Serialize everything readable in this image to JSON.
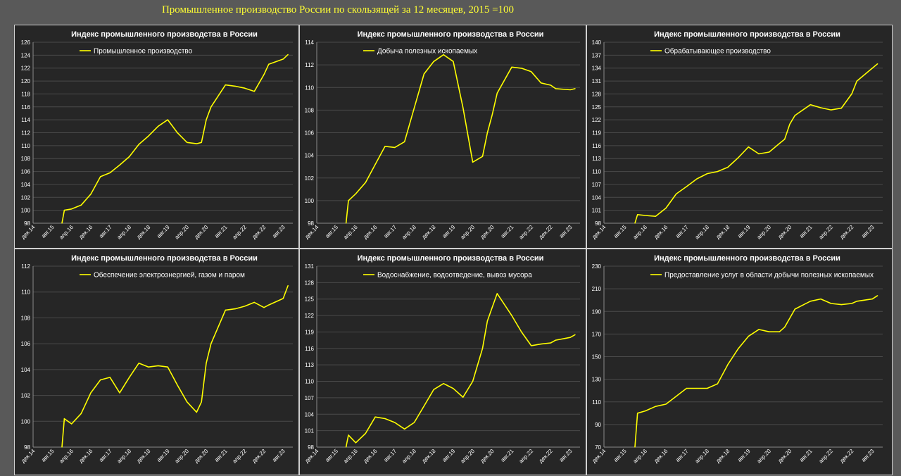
{
  "page_title": "Промышленное производство России по скользящей за 12 месяцев, 2015 =100",
  "colors": {
    "background": "#595959",
    "panel": "#262626",
    "line": "#ffff00",
    "title": "#ffff33"
  },
  "chart_data": [
    {
      "type": "line",
      "title": "Индекс промышленного производства в России",
      "legend": "Промышленное производство",
      "legend_position": "top-left",
      "grid": true,
      "ylim": [
        98,
        126
      ],
      "yticks": [
        98,
        100,
        102,
        104,
        106,
        108,
        110,
        112,
        114,
        116,
        118,
        120,
        122,
        124,
        126
      ],
      "x_labels": [
        "дек.14",
        "авг.15",
        "апр.16",
        "дек.16",
        "авг.17",
        "апр.18",
        "дек.18",
        "авг.19",
        "апр.20",
        "дек.20",
        "авг.21",
        "апр.22",
        "дек.22",
        "авг.23"
      ],
      "series": [
        {
          "x": [
            "дек.15",
            "янв.16",
            "апр.16",
            "авг.16",
            "дек.16",
            "апр.17",
            "авг.17",
            "дек.17",
            "апр.18",
            "авг.18",
            "дек.18",
            "апр.19",
            "авг.19",
            "дек.19",
            "апр.20",
            "авг.20",
            "окт.20",
            "дек.20",
            "фев.21",
            "авг.21",
            "дек.21",
            "апр.22",
            "авг.22",
            "дек.22",
            "фев.23",
            "авг.23",
            "окт.23"
          ],
          "values": [
            98,
            100,
            100.2,
            100.8,
            102.5,
            105.2,
            105.8,
            107,
            108.3,
            110.2,
            111.5,
            113,
            114,
            112,
            110.5,
            110.3,
            110.5,
            114,
            116,
            119.4,
            119.2,
            118.9,
            118.4,
            121,
            122.6,
            123.4,
            124.1
          ]
        }
      ]
    },
    {
      "type": "line",
      "title": "Индекс промышленного производства в России",
      "legend": "Добыча полезных ископаемых",
      "legend_position": "top-left",
      "grid": true,
      "ylim": [
        98,
        114
      ],
      "yticks": [
        98,
        100,
        102,
        104,
        106,
        108,
        110,
        112,
        114
      ],
      "x_labels": [
        "дек.14",
        "авг.15",
        "апр.16",
        "дек.16",
        "авг.17",
        "апр.18",
        "дек.18",
        "авг.19",
        "апр.20",
        "дек.20",
        "авг.21",
        "апр.22",
        "дек.22",
        "авг.23"
      ],
      "series": [
        {
          "x": [
            "дек.15",
            "янв.16",
            "апр.16",
            "авг.16",
            "дек.16",
            "апр.17",
            "авг.17",
            "дек.17",
            "апр.18",
            "авг.18",
            "дек.18",
            "апр.19",
            "авг.19",
            "дек.19",
            "апр.20",
            "авг.20",
            "окт.20",
            "дек.20",
            "фев.21",
            "авг.21",
            "дек.21",
            "апр.22",
            "авг.22",
            "дек.22",
            "фев.23",
            "авг.23",
            "окт.23"
          ],
          "values": [
            98,
            100,
            100.6,
            101.6,
            103.2,
            104.8,
            104.7,
            105.2,
            108.2,
            111.2,
            112.3,
            112.9,
            112.3,
            108.2,
            103.4,
            103.9,
            106,
            107.6,
            109.5,
            111.8,
            111.7,
            111.4,
            110.4,
            110.2,
            109.9,
            109.8,
            109.9
          ]
        }
      ]
    },
    {
      "type": "line",
      "title": "Индекс промышленного производства в России",
      "legend": "Обрабатывающее производство",
      "legend_position": "top-left",
      "grid": true,
      "ylim": [
        98,
        140
      ],
      "yticks": [
        98,
        101,
        104,
        107,
        110,
        113,
        116,
        119,
        122,
        125,
        128,
        131,
        134,
        137,
        140
      ],
      "x_labels": [
        "дек.14",
        "авг.15",
        "апр.16",
        "дек.16",
        "авг.17",
        "апр.18",
        "дек.18",
        "авг.19",
        "апр.20",
        "дек.20",
        "авг.21",
        "апр.22",
        "дек.22",
        "авг.23"
      ],
      "series": [
        {
          "x": [
            "дек.15",
            "янв.16",
            "апр.16",
            "авг.16",
            "дек.16",
            "апр.17",
            "авг.17",
            "дек.17",
            "апр.18",
            "авг.18",
            "дек.18",
            "апр.19",
            "авг.19",
            "дек.19",
            "апр.20",
            "авг.20",
            "окт.20",
            "дек.20",
            "фев.21",
            "авг.21",
            "дек.21",
            "апр.22",
            "авг.22",
            "дек.22",
            "фев.23",
            "авг.23",
            "окт.23"
          ],
          "values": [
            98,
            100,
            99.8,
            99.6,
            101.5,
            104.8,
            106.5,
            108.3,
            109.5,
            110,
            111,
            113.2,
            115.7,
            114.1,
            114.5,
            116.5,
            117.5,
            121,
            123,
            125.5,
            124.8,
            124.3,
            124.7,
            128,
            131,
            134,
            135
          ]
        }
      ]
    },
    {
      "type": "line",
      "title": "Индекс промышленного производства в России",
      "legend": "Обеспечение электроэнергией, газом и паром",
      "legend_position": "top-left",
      "grid": true,
      "ylim": [
        98,
        112
      ],
      "yticks": [
        98,
        100,
        102,
        104,
        106,
        108,
        110,
        112
      ],
      "x_labels": [
        "дек.14",
        "авг.15",
        "апр.16",
        "дек.16",
        "авг.17",
        "апр.18",
        "дек.18",
        "авг.19",
        "апр.20",
        "дек.20",
        "авг.21",
        "апр.22",
        "дек.22",
        "авг.23"
      ],
      "series": [
        {
          "x": [
            "дек.15",
            "янв.16",
            "апр.16",
            "авг.16",
            "дек.16",
            "апр.17",
            "авг.17",
            "дек.17",
            "апр.18",
            "авг.18",
            "дек.18",
            "апр.19",
            "авг.19",
            "дек.19",
            "апр.20",
            "авг.20",
            "окт.20",
            "дек.20",
            "фев.21",
            "авг.21",
            "дек.21",
            "апр.22",
            "авг.22",
            "дек.22",
            "фев.23",
            "авг.23",
            "окт.23"
          ],
          "values": [
            98,
            100.2,
            99.8,
            100.6,
            102.2,
            103.2,
            103.4,
            102.2,
            103.4,
            104.5,
            104.2,
            104.3,
            104.2,
            102.8,
            101.5,
            100.7,
            101.5,
            104.5,
            106,
            108.6,
            108.7,
            108.9,
            109.2,
            108.8,
            109,
            109.5,
            110.5
          ]
        }
      ]
    },
    {
      "type": "line",
      "title": "Индекс промышленного производства в России",
      "legend": "Водоснабжение, водоотведение, вывоз мусора",
      "legend_position": "top-left",
      "grid": true,
      "ylim": [
        98,
        131
      ],
      "yticks": [
        98,
        101,
        104,
        107,
        110,
        113,
        116,
        119,
        122,
        125,
        128,
        131
      ],
      "x_labels": [
        "дек.14",
        "авг.15",
        "апр.16",
        "дек.16",
        "авг.17",
        "апр.18",
        "дек.18",
        "авг.19",
        "апр.20",
        "дек.20",
        "авг.21",
        "апр.22",
        "дек.22",
        "авг.23"
      ],
      "series": [
        {
          "x": [
            "дек.15",
            "янв.16",
            "апр.16",
            "авг.16",
            "дек.16",
            "апр.17",
            "авг.17",
            "дек.17",
            "апр.18",
            "авг.18",
            "дек.18",
            "апр.19",
            "авг.19",
            "дек.19",
            "апр.20",
            "авг.20",
            "окт.20",
            "дек.20",
            "фев.21",
            "авг.21",
            "дек.21",
            "апр.22",
            "авг.22",
            "дек.22",
            "фев.23",
            "авг.23",
            "окт.23"
          ],
          "values": [
            98,
            100.2,
            98.8,
            100.5,
            103.5,
            103.2,
            102.5,
            101.3,
            102.5,
            105.5,
            108.5,
            109.6,
            108.7,
            107.1,
            110,
            116,
            121,
            123.5,
            126,
            122,
            119,
            116.5,
            116.8,
            117,
            117.5,
            118,
            118.5
          ]
        }
      ]
    },
    {
      "type": "line",
      "title": "Индекс промышленного производства в России",
      "legend": "Предоставление услуг в области добычи полезных ископаемых",
      "legend_position": "top-left",
      "grid": true,
      "ylim": [
        70,
        230
      ],
      "yticks": [
        70,
        90,
        110,
        130,
        150,
        170,
        190,
        210,
        230
      ],
      "x_labels": [
        "дек.14",
        "авг.15",
        "апр.16",
        "дек.16",
        "авг.17",
        "апр.18",
        "дек.18",
        "авг.19",
        "апр.20",
        "дек.20",
        "авг.21",
        "апр.22",
        "дек.22",
        "авг.23"
      ],
      "series": [
        {
          "x": [
            "дек.15",
            "янв.16",
            "апр.16",
            "авг.16",
            "дек.16",
            "апр.17",
            "авг.17",
            "дек.17",
            "апр.18",
            "авг.18",
            "дек.18",
            "апр.19",
            "авг.19",
            "дек.19",
            "апр.20",
            "авг.20",
            "окт.20",
            "дек.20",
            "фев.21",
            "авг.21",
            "дек.21",
            "апр.22",
            "авг.22",
            "дек.22",
            "фев.23",
            "авг.23",
            "окт.23"
          ],
          "values": [
            70,
            100,
            102,
            106,
            108,
            115,
            122,
            122,
            122,
            126,
            143,
            157,
            168,
            174,
            172,
            172,
            176,
            184,
            192,
            199,
            201,
            197,
            196,
            197,
            199,
            201,
            204
          ]
        }
      ]
    }
  ]
}
